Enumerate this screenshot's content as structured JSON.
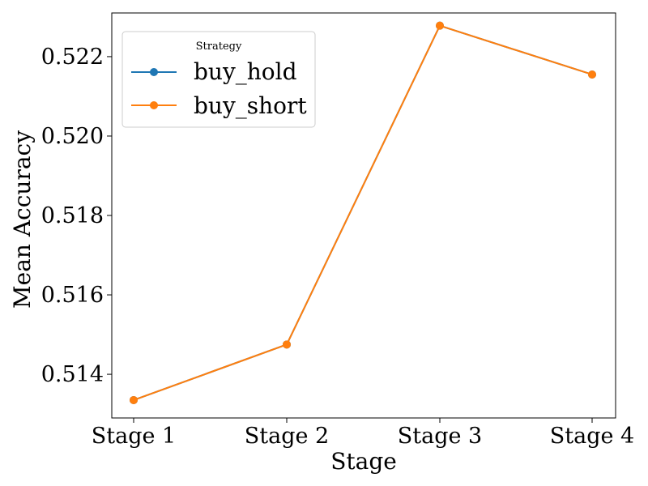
{
  "chart_data": {
    "type": "line",
    "xlabel": "Stage",
    "ylabel": "Mean Accuracy",
    "categories": [
      "Stage 1",
      "Stage 2",
      "Stage 3",
      "Stage 4"
    ],
    "ylim": [
      0.5129,
      0.5231
    ],
    "yticks": [
      0.514,
      0.516,
      0.518,
      0.52,
      0.522
    ],
    "ytick_labels": [
      "0.514",
      "0.516",
      "0.518",
      "0.520",
      "0.522"
    ],
    "grid": false,
    "legend": {
      "title": "Strategy",
      "placement": "top-left"
    },
    "series": [
      {
        "name": "buy_hold",
        "color": "#1f77b4",
        "marker": "circle",
        "values": [
          0.51335,
          0.51475,
          0.52278,
          0.52155
        ]
      },
      {
        "name": "buy_short",
        "color": "#ff7f0e",
        "marker": "circle",
        "values": [
          0.51335,
          0.51475,
          0.52278,
          0.52155
        ]
      }
    ]
  }
}
